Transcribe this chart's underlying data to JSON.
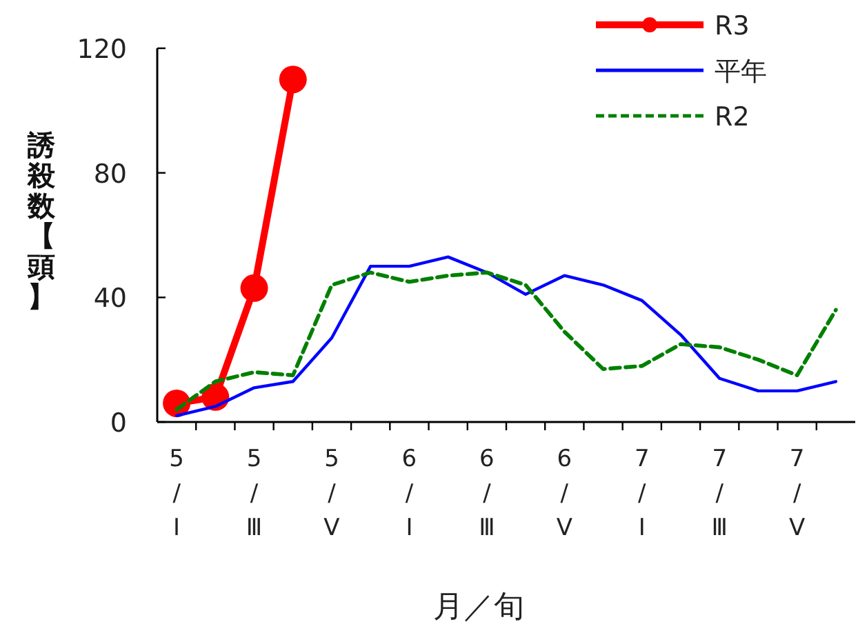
{
  "chart_data": {
    "type": "line",
    "xlabel": "月／旬",
    "ylabel": "誘殺数【頭】",
    "categories": [
      "5/Ⅰ",
      null,
      "5/Ⅲ",
      null,
      "5/Ⅴ",
      null,
      "6/Ⅰ",
      null,
      "6/Ⅲ",
      null,
      "6/Ⅴ",
      null,
      "7/Ⅰ",
      null,
      "7/Ⅲ",
      null,
      "7/Ⅴ",
      null
    ],
    "ylim": [
      0,
      120
    ],
    "yticks": [
      0,
      40,
      80,
      120
    ],
    "grid": false,
    "legend": "top right",
    "series": [
      {
        "name": "R3",
        "color": "#ff0000",
        "marker": "circle",
        "line_style": "solid",
        "values": [
          6,
          8,
          43,
          110,
          null,
          null,
          null,
          null,
          null,
          null,
          null,
          null,
          null,
          null,
          null,
          null,
          null,
          null
        ]
      },
      {
        "name": "平年",
        "color": "#0000ff",
        "marker": "none",
        "line_style": "solid",
        "values": [
          2,
          5,
          11,
          13,
          27,
          50,
          50,
          53,
          48,
          41,
          47,
          44,
          39,
          28,
          14,
          10,
          10,
          13
        ]
      },
      {
        "name": "R2",
        "color": "#008000",
        "marker": "none",
        "line_style": "dashed",
        "values": [
          4,
          13,
          16,
          15,
          44,
          48,
          45,
          47,
          48,
          44,
          29,
          17,
          18,
          25,
          24,
          20,
          15,
          36
        ]
      }
    ]
  }
}
